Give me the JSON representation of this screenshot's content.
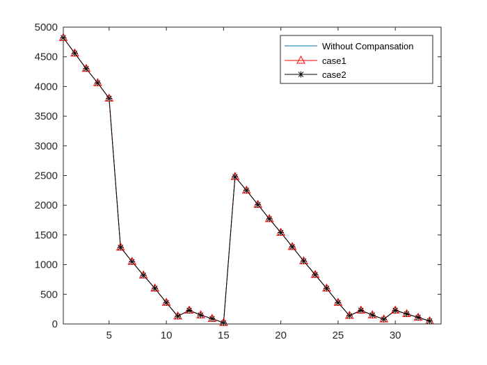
{
  "chart_data": {
    "type": "line",
    "title": "",
    "xlabel": "",
    "ylabel": "",
    "xlim": [
      1,
      34
    ],
    "ylim": [
      0,
      5000
    ],
    "xticks": [
      5,
      10,
      15,
      20,
      25,
      30
    ],
    "yticks": [
      0,
      500,
      1000,
      1500,
      2000,
      2500,
      3000,
      3500,
      4000,
      4500,
      5000
    ],
    "grid": false,
    "legend_position": "top-right",
    "x": [
      1,
      2,
      3,
      4,
      5,
      6,
      7,
      8,
      9,
      10,
      11,
      12,
      13,
      14,
      15,
      16,
      17,
      18,
      19,
      20,
      21,
      22,
      23,
      24,
      25,
      26,
      27,
      28,
      29,
      30,
      31,
      32,
      33
    ],
    "series": [
      {
        "name": "Without Compansation",
        "color": "#0072BD",
        "marker": "none",
        "values": [
          4820,
          4560,
          4300,
          4060,
          3800,
          1290,
          1050,
          820,
          600,
          360,
          130,
          230,
          150,
          90,
          20,
          2480,
          2250,
          2010,
          1770,
          1540,
          1300,
          1060,
          830,
          600,
          360,
          140,
          230,
          150,
          80,
          230,
          170,
          110,
          50
        ]
      },
      {
        "name": "case1",
        "color": "#FF0000",
        "marker": "triangle",
        "values": [
          4820,
          4560,
          4300,
          4060,
          3800,
          1290,
          1050,
          820,
          600,
          360,
          130,
          230,
          150,
          90,
          20,
          2480,
          2250,
          2010,
          1770,
          1540,
          1300,
          1060,
          830,
          600,
          360,
          140,
          230,
          150,
          80,
          230,
          170,
          110,
          50
        ]
      },
      {
        "name": "case2",
        "color": "#000000",
        "marker": "asterisk",
        "values": [
          4820,
          4560,
          4300,
          4060,
          3800,
          1290,
          1050,
          820,
          600,
          360,
          130,
          230,
          150,
          90,
          20,
          2480,
          2250,
          2010,
          1770,
          1540,
          1300,
          1060,
          830,
          600,
          360,
          140,
          230,
          150,
          80,
          230,
          170,
          110,
          50
        ]
      }
    ]
  }
}
